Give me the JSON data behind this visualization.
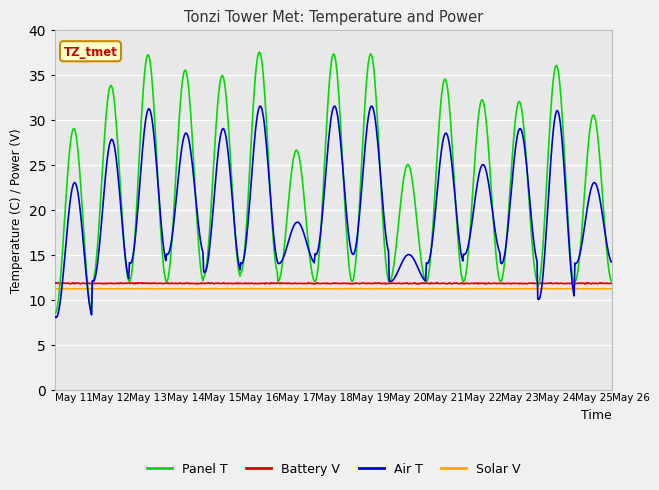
{
  "title": "Tonzi Tower Met: Temperature and Power",
  "xlabel": "Time",
  "ylabel": "Temperature (C) / Power (V)",
  "ylim": [
    0,
    40
  ],
  "yticks": [
    0,
    5,
    10,
    15,
    20,
    25,
    30,
    35,
    40
  ],
  "fig_bg_color": "#f0f0f0",
  "plot_bg_color": "#e8e8e8",
  "xtick_labels": [
    "May 11",
    "May 12",
    "May 13",
    "May 14",
    "May 15",
    "May 16",
    "May 17",
    "May 18",
    "May 19",
    "May 20",
    "May 21",
    "May 22",
    "May 23",
    "May 24",
    "May 25",
    "May 26"
  ],
  "panel_T_color": "#00dd00",
  "battery_V_color": "#dd0000",
  "air_T_color": "#0000dd",
  "solar_V_color": "#ffaa00",
  "legend_label_box": "TZ_tmet",
  "legend_box_fg": "#cc0000",
  "legend_box_bg": "#ffffcc",
  "legend_box_edge": "#cc8800",
  "day_peaks_panel": [
    29.0,
    33.8,
    37.2,
    35.5,
    34.9,
    37.5,
    26.6,
    37.3,
    37.3,
    25.0,
    34.5,
    32.2,
    32.0,
    36.0,
    30.5
  ],
  "day_troughs_panel": [
    8.5,
    12.0,
    12.0,
    12.0,
    12.5,
    13.0,
    12.0,
    12.0,
    12.0,
    12.0,
    12.0,
    12.0,
    12.0,
    11.5,
    12.0
  ],
  "day_peaks_air": [
    23.0,
    27.8,
    31.2,
    28.5,
    29.0,
    31.5,
    18.6,
    31.5,
    31.5,
    15.0,
    28.5,
    25.0,
    29.0,
    31.0,
    23.0
  ],
  "day_troughs_air": [
    8.0,
    12.0,
    14.0,
    15.0,
    13.0,
    14.0,
    14.0,
    15.0,
    15.0,
    12.0,
    14.0,
    15.0,
    14.0,
    10.0,
    14.0
  ],
  "battery_V_mean": 11.8,
  "solar_V_mean": 11.2,
  "linewidth": 1.2,
  "n_days": 15,
  "pts_per_day": 48
}
